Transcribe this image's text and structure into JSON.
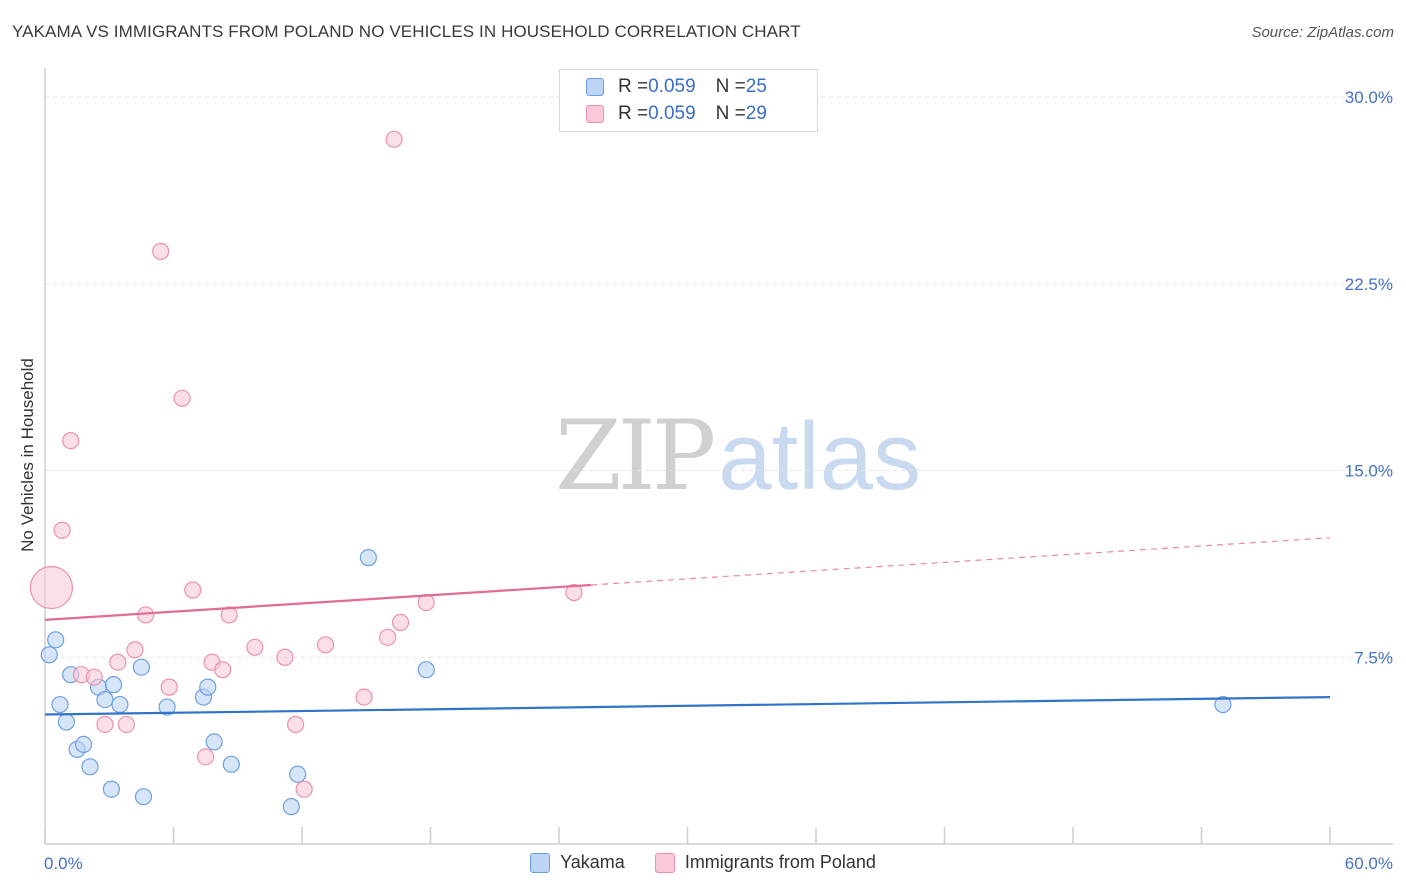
{
  "title": "YAKAMA VS IMMIGRANTS FROM POLAND NO VEHICLES IN HOUSEHOLD CORRELATION CHART",
  "source": "Source: ZipAtlas.com",
  "watermark": {
    "zip": "ZIP",
    "atlas": "atlas"
  },
  "legend": {
    "rows": [
      {
        "r_label": "R = ",
        "r_value": "0.059",
        "n_label": "N = ",
        "n_value": "25"
      },
      {
        "r_label": "R = ",
        "r_value": "0.059",
        "n_label": "N = ",
        "n_value": "29"
      }
    ]
  },
  "bottom_legend": [
    "Yakama",
    "Immigrants from Poland"
  ],
  "colors": {
    "yakama_fill": "#bcd4f5",
    "yakama_stroke": "#6e9fe0",
    "yakama_line": "#2f74c8",
    "poland_fill": "#f9c9d7",
    "poland_stroke": "#ec91ad",
    "poland_line": "#e26d94",
    "tick_text": "#4472c4",
    "grid": "#e2e2e2"
  },
  "chart_data": {
    "type": "scatter",
    "title": "YAKAMA VS IMMIGRANTS FROM POLAND NO VEHICLES IN HOUSEHOLD CORRELATION CHART",
    "xlabel": "",
    "ylabel": "No Vehicles in Household",
    "xlim": [
      0,
      60
    ],
    "ylim": [
      0,
      31.5
    ],
    "x_tick_labels": [
      {
        "value": 0,
        "label": "0.0%"
      },
      {
        "value": 60,
        "label": "60.0%"
      }
    ],
    "y_tick_labels": [
      {
        "value": 7.5,
        "label": "7.5%"
      },
      {
        "value": 15.0,
        "label": "15.0%"
      },
      {
        "value": 22.5,
        "label": "22.5%"
      },
      {
        "value": 30.0,
        "label": "30.0%"
      }
    ],
    "grid": true,
    "legend_position": "top-center",
    "series": [
      {
        "name": "Yakama",
        "r": 0.059,
        "n": 25,
        "trend": {
          "x0": 0,
          "y0": 5.2,
          "x1": 60,
          "y1": 5.9,
          "solid_until": 60
        },
        "points": [
          {
            "x": 0.2,
            "y": 7.6
          },
          {
            "x": 0.5,
            "y": 8.2
          },
          {
            "x": 0.7,
            "y": 5.6
          },
          {
            "x": 1.0,
            "y": 4.9
          },
          {
            "x": 1.2,
            "y": 6.8
          },
          {
            "x": 1.5,
            "y": 3.8
          },
          {
            "x": 1.8,
            "y": 4.0
          },
          {
            "x": 2.1,
            "y": 3.1
          },
          {
            "x": 2.5,
            "y": 6.3
          },
          {
            "x": 2.8,
            "y": 5.8
          },
          {
            "x": 3.1,
            "y": 2.2
          },
          {
            "x": 3.2,
            "y": 6.4
          },
          {
            "x": 3.5,
            "y": 5.6
          },
          {
            "x": 4.6,
            "y": 1.9
          },
          {
            "x": 4.5,
            "y": 7.1
          },
          {
            "x": 5.7,
            "y": 5.5
          },
          {
            "x": 7.4,
            "y": 5.9
          },
          {
            "x": 7.6,
            "y": 6.3
          },
          {
            "x": 7.9,
            "y": 4.1
          },
          {
            "x": 8.7,
            "y": 3.2
          },
          {
            "x": 11.5,
            "y": 1.5
          },
          {
            "x": 11.8,
            "y": 2.8
          },
          {
            "x": 15.1,
            "y": 11.5
          },
          {
            "x": 17.8,
            "y": 7.0
          },
          {
            "x": 55.0,
            "y": 5.6
          }
        ]
      },
      {
        "name": "Immigrants from Poland",
        "r": 0.059,
        "n": 29,
        "trend": {
          "x0": 0,
          "y0": 9.0,
          "x1": 60,
          "y1": 12.3,
          "solid_until": 25.5
        },
        "points": [
          {
            "x": 0.3,
            "y": 10.3,
            "big": true
          },
          {
            "x": 0.8,
            "y": 12.6
          },
          {
            "x": 1.2,
            "y": 16.2
          },
          {
            "x": 1.7,
            "y": 6.8
          },
          {
            "x": 2.3,
            "y": 6.7
          },
          {
            "x": 2.8,
            "y": 4.8
          },
          {
            "x": 3.4,
            "y": 7.3
          },
          {
            "x": 3.8,
            "y": 4.8
          },
          {
            "x": 4.2,
            "y": 7.8
          },
          {
            "x": 4.7,
            "y": 9.2
          },
          {
            "x": 5.4,
            "y": 23.8
          },
          {
            "x": 5.8,
            "y": 6.3
          },
          {
            "x": 6.4,
            "y": 17.9
          },
          {
            "x": 6.9,
            "y": 10.2
          },
          {
            "x": 7.5,
            "y": 3.5
          },
          {
            "x": 7.8,
            "y": 7.3
          },
          {
            "x": 8.3,
            "y": 7.0
          },
          {
            "x": 8.6,
            "y": 9.2
          },
          {
            "x": 9.8,
            "y": 7.9
          },
          {
            "x": 11.2,
            "y": 7.5
          },
          {
            "x": 11.7,
            "y": 4.8
          },
          {
            "x": 12.1,
            "y": 2.2
          },
          {
            "x": 13.1,
            "y": 8.0
          },
          {
            "x": 14.9,
            "y": 5.9
          },
          {
            "x": 16.0,
            "y": 8.3
          },
          {
            "x": 16.3,
            "y": 28.3
          },
          {
            "x": 16.6,
            "y": 8.9
          },
          {
            "x": 17.8,
            "y": 9.7
          },
          {
            "x": 24.7,
            "y": 10.1
          }
        ]
      }
    ]
  }
}
